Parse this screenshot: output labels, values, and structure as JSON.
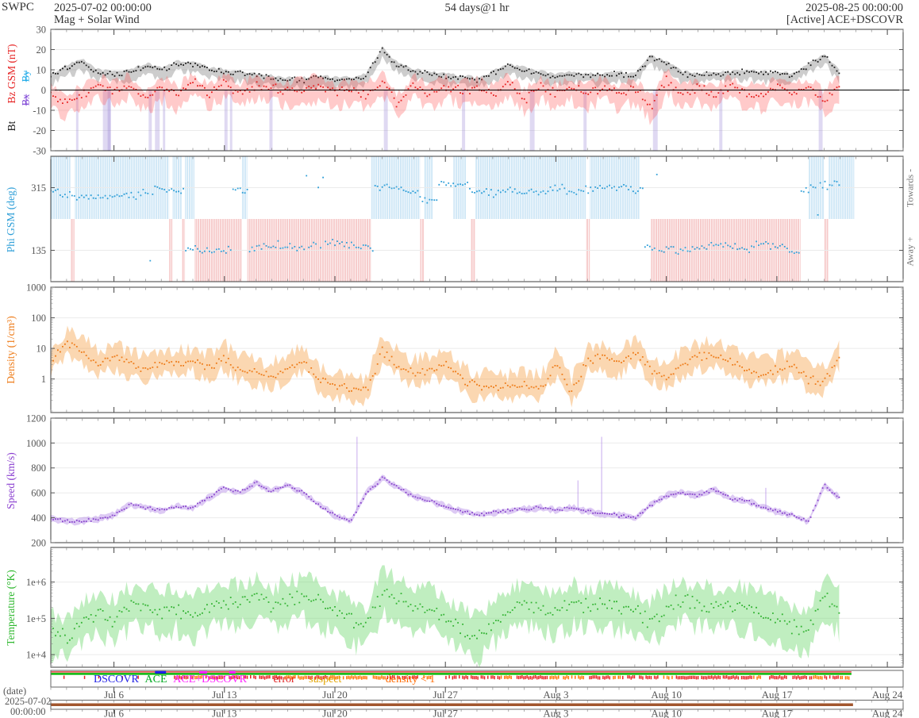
{
  "header": {
    "app": "SWPC",
    "start_datetime": "2025-07-02 00:00:00",
    "duration": "54 days@1 hr",
    "end_datetime": "2025-08-25 00:00:00",
    "plot_title": "Mag + Solar Wind",
    "source_status": "[Active] ACE+DSCOVR"
  },
  "panel_labels": {
    "mag": {
      "bt": "Bt",
      "bz": "Bz GSM (nT)",
      "by": "By",
      "bx": "Bx"
    },
    "phi": {
      "label": "Phi GSM (deg)",
      "right_top": "Towards -",
      "right_bottom": "Away +"
    },
    "density": {
      "label": "Density (1/cm³)"
    },
    "speed": {
      "label": "Speed (km/s)"
    },
    "temperature": {
      "label": "Temperature (°K)"
    }
  },
  "axes": {
    "caption": "(date)",
    "start_line1": "2025-07-02",
    "start_line2": "00:00:00"
  },
  "legend": {
    "items": [
      {
        "label": "DSCOVR",
        "color": "#1e1ee6"
      },
      {
        "label": "ACE",
        "color": "#00aa22"
      },
      {
        "label": "ACE+DSCOVR",
        "color": "#ff22ff"
      },
      {
        "label": "error",
        "color": "#e02020"
      },
      {
        "label": "suspect",
        "color": "#e2a400"
      },
      {
        "label": "density < 1",
        "color": "#ff6a00"
      }
    ]
  },
  "status_bar": {
    "top_line_color": "#e03030",
    "active_line_color": "#00b400",
    "data_end_day": 50.7,
    "dscovr_segments": [
      [
        6.6,
        7.3
      ]
    ],
    "combo_segments": [
      [
        9.4,
        9.9
      ],
      [
        11.3,
        11.7
      ]
    ],
    "marks": [
      [
        0.1,
        0.18,
        "e"
      ],
      [
        0.8,
        0.88,
        "e"
      ],
      [
        2.1,
        2.18,
        "e"
      ],
      [
        3,
        3.1,
        "e"
      ],
      [
        4.5,
        4.58,
        "e"
      ],
      [
        5.5,
        5.58,
        "e"
      ],
      [
        7.8,
        9,
        "e"
      ],
      [
        9,
        9.6,
        "d"
      ],
      [
        9.8,
        12,
        "e"
      ],
      [
        12.2,
        13,
        "e"
      ],
      [
        13.2,
        14.6,
        "e"
      ],
      [
        14.8,
        16.2,
        "d"
      ],
      [
        16.3,
        17.5,
        "e"
      ],
      [
        17.6,
        18.4,
        "d"
      ],
      [
        18.5,
        21.2,
        "d"
      ],
      [
        21.3,
        23.4,
        "e"
      ],
      [
        23.6,
        24.2,
        "d"
      ],
      [
        25,
        26.5,
        "e"
      ],
      [
        26.6,
        28.4,
        "e"
      ],
      [
        28.5,
        29.2,
        "d"
      ],
      [
        29.4,
        31.5,
        "e"
      ],
      [
        31.6,
        33.8,
        "d"
      ],
      [
        34,
        35.4,
        "e"
      ],
      [
        35.5,
        36.1,
        "d"
      ],
      [
        36.2,
        38.7,
        "e"
      ],
      [
        38.8,
        39.5,
        "d"
      ],
      [
        39.6,
        41,
        "e"
      ],
      [
        41.2,
        43,
        "e"
      ],
      [
        43.1,
        44.4,
        "e"
      ],
      [
        44.5,
        45.2,
        "d"
      ],
      [
        45.4,
        47,
        "e"
      ],
      [
        47.1,
        48.2,
        "e"
      ],
      [
        48.3,
        48.9,
        "d"
      ],
      [
        49,
        49.9,
        "e"
      ],
      [
        50,
        50.6,
        "d"
      ]
    ],
    "mark_colors": {
      "e": "#e82020",
      "d": "#ff7300"
    }
  },
  "coverage_bar": {
    "start_day": 0,
    "end_day": 50.8,
    "color": "#a2562e"
  },
  "chart_data": {
    "title": "Mag + Solar Wind",
    "x_start": "2025-07-02 00:00:00",
    "x_end": "2025-08-25 00:00:00",
    "x_range_days": 54,
    "cadence": "1 hr",
    "data_end_day": 50.7,
    "x_unit": "days since 2025-07-02 00:00",
    "step_days": 1,
    "xticks": [
      {
        "day": 4,
        "label": "Jul 6"
      },
      {
        "day": 11,
        "label": "Jul 13"
      },
      {
        "day": 18,
        "label": "Jul 20"
      },
      {
        "day": 25,
        "label": "Jul 27"
      },
      {
        "day": 32,
        "label": "Aug 3"
      },
      {
        "day": 39,
        "label": "Aug 10"
      },
      {
        "day": 46,
        "label": "Aug 17"
      },
      {
        "day": 53,
        "label": "Aug 24"
      }
    ],
    "panels": [
      {
        "name": "mag",
        "type": "scatter",
        "ylabel": "Bt, Bz GSM (nT)",
        "ylim": [
          -30,
          30
        ],
        "yticks": [
          30,
          20,
          10,
          0,
          -10,
          -20,
          -30
        ],
        "zero_line": true,
        "series": [
          {
            "name": "Bt",
            "color": "#1a1a1a",
            "band_color": "rgba(90,90,90,0.30)",
            "jitter": 0.8,
            "band": [
              0.5,
              1.5,
              2,
              4
            ],
            "values": [
              7,
              11,
              14,
              9,
              8,
              9,
              12,
              10,
              13,
              13,
              10,
              9,
              8,
              7,
              6,
              5,
              5,
              6,
              5,
              5,
              7,
              20,
              12,
              9,
              8,
              7,
              6,
              5,
              8,
              12,
              10,
              8,
              7,
              8,
              7,
              7,
              8,
              7,
              16,
              13,
              8,
              7,
              8,
              8,
              9,
              8,
              8,
              7,
              12,
              17,
              8
            ]
          },
          {
            "name": "Bz",
            "color": "#e62222",
            "band_color": "rgba(255,80,80,0.30)",
            "jitter": 1.4,
            "band": [
              2,
              5,
              3,
              7
            ],
            "values": [
              -2,
              -6,
              -3,
              2,
              -1,
              3,
              -4,
              2,
              -3,
              4,
              -2,
              3,
              -1,
              2,
              1,
              -1,
              1,
              2,
              -1,
              0,
              -2,
              5,
              -7,
              3,
              -2,
              2,
              -1,
              1,
              -3,
              4,
              -5,
              2,
              -2,
              1,
              -2,
              2,
              -3,
              1,
              -9,
              5,
              -2,
              1,
              -2,
              2,
              -1,
              -3,
              2,
              -1,
              1,
              -5,
              3
            ]
          }
        ],
        "excursions": {
          "color": "rgba(140,120,210,0.28)",
          "days": [
            [
              1.6,
              0.15
            ],
            [
              3.3,
              0.5
            ],
            [
              3.6,
              0.2
            ],
            [
              6.2,
              0.2
            ],
            [
              6.6,
              0.3
            ],
            [
              7.1,
              0.15
            ],
            [
              11,
              0.2
            ],
            [
              11.35,
              0.15
            ],
            [
              13.85,
              0.2
            ],
            [
              21.1,
              0.25
            ],
            [
              26.05,
              0.2
            ],
            [
              30.35,
              0.3
            ],
            [
              33.75,
              0.2
            ],
            [
              38.15,
              0.3
            ],
            [
              42.35,
              0.2
            ],
            [
              48.65,
              0.25
            ]
          ]
        }
      },
      {
        "name": "phi",
        "type": "scatter",
        "ylabel": "Phi GSM (deg)",
        "sampling": "nearest",
        "ylim": [
          45,
          405
        ],
        "yticks": [
          315,
          135
        ],
        "series": [
          {
            "name": "Phi",
            "color": "#2f9fd8",
            "jitter": 7,
            "outlier": 0.035,
            "values": [
              310,
              295,
              285,
              290,
              288,
              292,
              300,
              310,
              305,
              140,
              130,
              135,
              310,
              140,
              150,
              145,
              140,
              150,
              155,
              150,
              145,
              320,
              310,
              300,
              280,
              330,
              320,
              300,
              305,
              310,
              300,
              305,
              310,
              300,
              310,
              315,
              320,
              310,
              140,
              135,
              130,
              140,
              150,
              145,
              140,
              150,
              145,
              130,
              310,
              320,
              330
            ]
          }
        ],
        "sectors": {
          "toward_color": "#cfe7f6",
          "away_color": "#f6caca",
          "boundary_deg": 225,
          "list": [
            [
              0,
              1.25,
              "T"
            ],
            [
              1.25,
              1.5,
              "A"
            ],
            [
              1.5,
              7.5,
              "T"
            ],
            [
              7.5,
              7.7,
              "A"
            ],
            [
              7.7,
              8.3,
              "T"
            ],
            [
              8.3,
              8.5,
              "A"
            ],
            [
              8.5,
              9.1,
              "T"
            ],
            [
              9.1,
              12.1,
              "A"
            ],
            [
              12.1,
              12.45,
              "T"
            ],
            [
              12.45,
              20.3,
              "A"
            ],
            [
              20.3,
              23.4,
              "T"
            ],
            [
              23.4,
              23.65,
              "A"
            ],
            [
              23.65,
              24.2,
              "T"
            ],
            [
              25.5,
              26.3,
              "T"
            ],
            [
              26.6,
              26.9,
              "A"
            ],
            [
              26.9,
              33.9,
              "T"
            ],
            [
              33.9,
              34.15,
              "A"
            ],
            [
              34.15,
              37.3,
              "T"
            ],
            [
              38,
              47.5,
              "A"
            ],
            [
              48,
              49,
              "T"
            ],
            [
              49,
              49.25,
              "A"
            ],
            [
              49.25,
              50.9,
              "T"
            ]
          ]
        }
      },
      {
        "name": "density",
        "type": "scatter",
        "ylabel": "Density (1/cm³)",
        "log": true,
        "ylim": [
          0.08,
          1000
        ],
        "yticks": [
          1000,
          100,
          10,
          1
        ],
        "series": [
          {
            "name": "Density",
            "color": "#ee7b18",
            "band_color": "rgba(246,160,70,0.42)",
            "jitter_dec": 0.09,
            "band_dec": [
              0.18,
              0.5,
              0.15,
              0.45
            ],
            "values": [
              4,
              15,
              8,
              3,
              5,
              3,
              2,
              4,
              3,
              4,
              2.5,
              5,
              2,
              1.5,
              1.2,
              2,
              4,
              1,
              0.6,
              0.5,
              0.4,
              8,
              3,
              1.5,
              2,
              3,
              1,
              0.5,
              0.6,
              0.5,
              0.6,
              0.5,
              3,
              0.4,
              4,
              5,
              3,
              8,
              2,
              1.2,
              3,
              5,
              6,
              4,
              2,
              1.5,
              2,
              3,
              1,
              0.8,
              6
            ]
          }
        ]
      },
      {
        "name": "speed",
        "type": "scatter",
        "ylabel": "Speed (km/s)",
        "ylim": [
          200,
          1200
        ],
        "yticks": [
          1200,
          1000,
          800,
          600,
          400,
          200
        ],
        "spikes": [
          [
            19.4,
            1050
          ],
          [
            33.4,
            700
          ],
          [
            34.9,
            1050
          ],
          [
            45.3,
            640
          ]
        ],
        "series": [
          {
            "name": "Speed",
            "color": "#8а44cc",
            "color_fix": "#8844cc",
            "band_color": "rgba(165,115,225,0.38)",
            "jitter": 8,
            "band": [
              8,
              28,
              8,
              28
            ],
            "values": [
              400,
              370,
              375,
              390,
              420,
              510,
              480,
              460,
              490,
              480,
              560,
              640,
              600,
              680,
              610,
              660,
              600,
              500,
              420,
              370,
              600,
              720,
              640,
              570,
              540,
              490,
              450,
              430,
              440,
              460,
              470,
              480,
              460,
              480,
              450,
              430,
              420,
              400,
              500,
              580,
              600,
              580,
              630,
              560,
              540,
              490,
              450,
              420,
              370,
              660,
              560
            ]
          }
        ]
      },
      {
        "name": "temperature",
        "type": "scatter",
        "ylabel": "Temperature (°K)",
        "log": true,
        "ylim": [
          4500,
          9000000
        ],
        "yticks": [
          1000000,
          100000,
          10000
        ],
        "ytick_labels": [
          "1e+6",
          "1e+5",
          "1e+4"
        ],
        "series": [
          {
            "name": "Temperature",
            "color": "#33b333",
            "band_color": "rgba(115,218,115,0.45)",
            "jitter_dec": 0.13,
            "band_dec": [
              0.28,
              0.5,
              0.3,
              0.6
            ],
            "values": [
              40000,
              30000,
              80000,
              150000,
              100000,
              200000,
              250000,
              150000,
              200000,
              100000,
              200000,
              300000,
              250000,
              400000,
              200000,
              300000,
              400000,
              250000,
              150000,
              80000,
              60000,
              500000,
              400000,
              200000,
              200000,
              120000,
              50000,
              30000,
              80000,
              150000,
              300000,
              200000,
              150000,
              250000,
              200000,
              250000,
              200000,
              150000,
              80000,
              200000,
              300000,
              250000,
              200000,
              250000,
              200000,
              150000,
              100000,
              60000,
              50000,
              400000,
              150000
            ]
          }
        ]
      }
    ]
  }
}
